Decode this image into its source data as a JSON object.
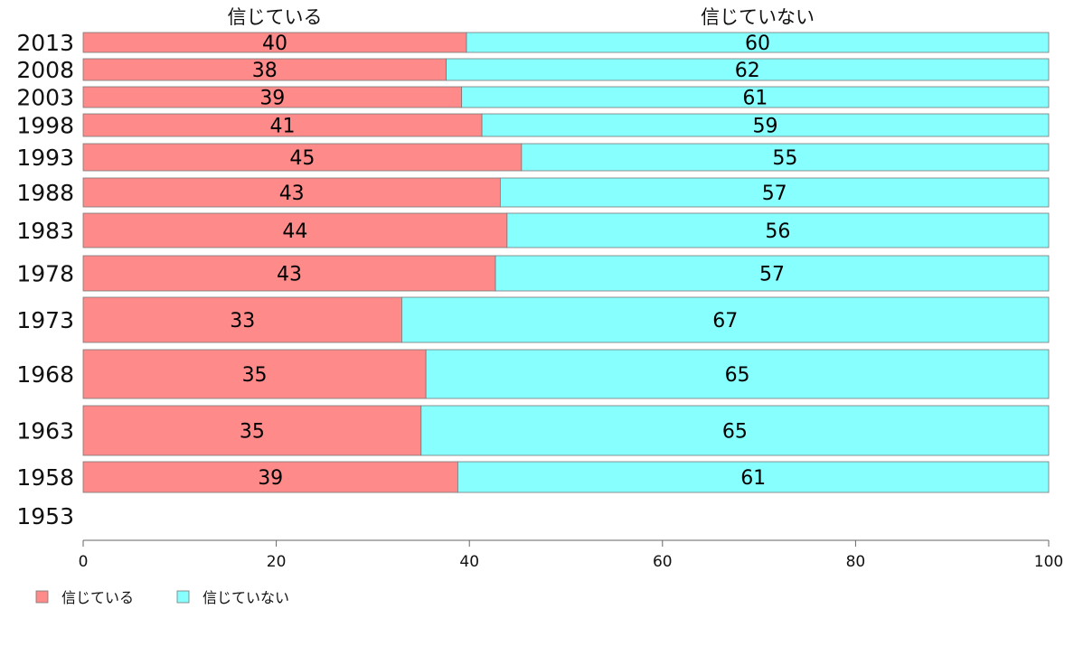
{
  "chart_data": {
    "type": "bar",
    "orientation": "horizontal",
    "stacked": true,
    "categories": [
      "2013",
      "2008",
      "2003",
      "1998",
      "1993",
      "1988",
      "1983",
      "1978",
      "1973",
      "1968",
      "1963",
      "1958",
      "1953"
    ],
    "series": [
      {
        "name": "信じている",
        "color": "#ff8a8a",
        "values": [
          39.7,
          37.6,
          39.2,
          41.3,
          45.4,
          43.2,
          43.9,
          42.7,
          33.0,
          35.5,
          35.0,
          38.8,
          null
        ],
        "labels": [
          "40",
          "38",
          "39",
          "41",
          "45",
          "43",
          "44",
          "43",
          "33",
          "35",
          "35",
          "39",
          ""
        ]
      },
      {
        "name": "信じていない",
        "color": "#88ffff",
        "values": [
          60.3,
          62.4,
          60.8,
          58.7,
          54.6,
          56.8,
          56.1,
          57.3,
          67.0,
          64.5,
          65.0,
          61.2,
          null
        ],
        "labels": [
          "60",
          "62",
          "61",
          "59",
          "55",
          "57",
          "56",
          "57",
          "67",
          "65",
          "65",
          "61",
          ""
        ]
      }
    ],
    "top_labels": [
      "信じている",
      "信じていない"
    ],
    "xlim": [
      0,
      100
    ],
    "xticks": [
      "0",
      "20",
      "40",
      "60",
      "80",
      "100"
    ],
    "grid": false,
    "legend_position": "bottom-left",
    "variable_bar_width": true
  }
}
